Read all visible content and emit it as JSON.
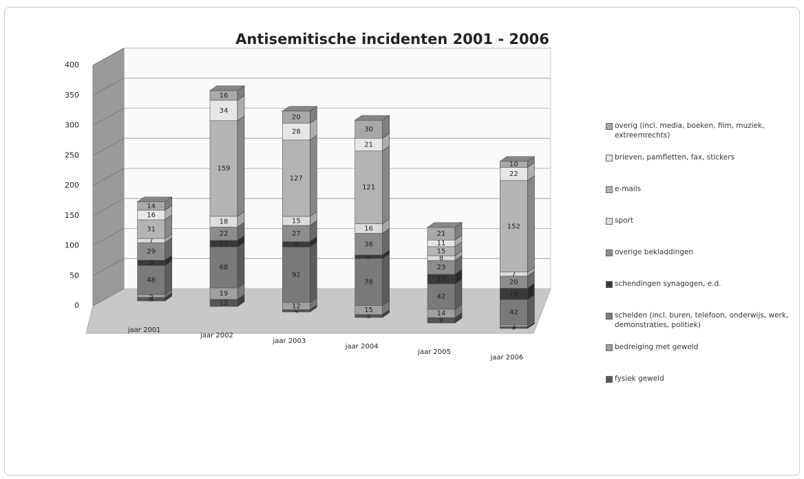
{
  "chart_data": {
    "type": "bar3d_stacked",
    "title": "Antisemitische incidenten 2001 - 2006",
    "categories": [
      "jaar 2001",
      "jaar 2002",
      "jaar 2003",
      "jaar 2004",
      "jaar 2005",
      "jaar 2006"
    ],
    "series": [
      {
        "name": "fysiek geweld",
        "color": "#555555",
        "values": [
          6,
          12,
          4,
          5,
          9,
          3
        ]
      },
      {
        "name": "bedreiging met geweld",
        "color": "#a0a0a0",
        "values": [
          5,
          19,
          12,
          15,
          14,
          3
        ]
      },
      {
        "name": "schelden (incl. buren, telefoon, onderwijs, werk, demonstraties, politiek)",
        "color": "#7a7a7a",
        "values": [
          48,
          68,
          92,
          78,
          42,
          42
        ]
      },
      {
        "name": "schendingen synagogen, e.d.",
        "color": "#3a3a3a",
        "values": [
          9,
          11,
          9,
          6,
          16,
          19
        ]
      },
      {
        "name": "overige bekladdingen",
        "color": "#8c8c8c",
        "values": [
          29,
          22,
          27,
          36,
          23,
          20
        ]
      },
      {
        "name": "sport",
        "color": "#dcdcdc",
        "values": [
          7,
          18,
          15,
          16,
          8,
          7
        ]
      },
      {
        "name": "e-mails",
        "color": "#b4b4b4",
        "values": [
          31,
          159,
          127,
          121,
          15,
          152
        ]
      },
      {
        "name": "brieven, pamfletten, fax, stickers",
        "color": "#e6e6e6",
        "values": [
          16,
          34,
          28,
          21,
          11,
          22
        ]
      },
      {
        "name": "overig (incl. media, boeken, film, muziek, extreemrechts)",
        "color": "#a8a8a8",
        "values": [
          14,
          16,
          20,
          30,
          21,
          10
        ]
      }
    ],
    "ylim": [
      0,
      400
    ],
    "yticks": [
      0,
      50,
      100,
      150,
      200,
      250,
      300,
      350,
      400
    ],
    "grid": true
  }
}
